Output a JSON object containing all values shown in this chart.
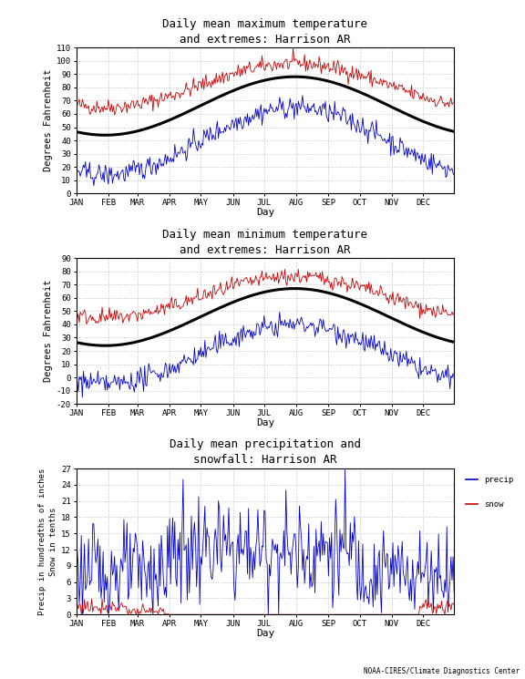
{
  "panel1_title": "Daily mean maximum temperature\nand extremes: Harrison AR",
  "panel2_title": "Daily mean minimum temperature\nand extremes: Harrison AR",
  "panel3_title": "Daily mean precipitation and\nsnowfall: Harrison AR",
  "ylabel1": "Degrees Fahrenheit",
  "ylabel2": "Degrees Fahrenheit",
  "ylabel3": "Precip in hundredths of inches\nSnow in tenths",
  "xlabel": "Day",
  "footer": "NOAA-CIRES/Climate Diagnostics Center",
  "months": [
    "JAN",
    "FEB",
    "MAR",
    "APR",
    "MAY",
    "JUN",
    "JUL",
    "AUG",
    "SEP",
    "OCT",
    "NOV",
    "DEC"
  ],
  "month_days": [
    0,
    31,
    59,
    90,
    120,
    151,
    181,
    212,
    243,
    273,
    304,
    334
  ],
  "panel1_ylim": [
    0,
    110
  ],
  "panel1_yticks": [
    0,
    10,
    20,
    30,
    40,
    50,
    60,
    70,
    80,
    90,
    100,
    110
  ],
  "panel2_ylim": [
    -20,
    90
  ],
  "panel2_yticks": [
    -20,
    -10,
    0,
    10,
    20,
    30,
    40,
    50,
    60,
    70,
    80,
    90
  ],
  "panel3_ylim": [
    0,
    27
  ],
  "panel3_yticks": [
    0,
    3,
    6,
    9,
    12,
    15,
    18,
    21,
    24,
    27
  ],
  "color_red": "#cc0000",
  "color_blue": "#0000cc",
  "color_black": "#000000",
  "color_bg": "#ffffff",
  "color_grid": "#aaaaaa",
  "legend_precip": "precip",
  "legend_snow": "snow",
  "figsize": [
    5.76,
    7.45
  ],
  "dpi": 100
}
